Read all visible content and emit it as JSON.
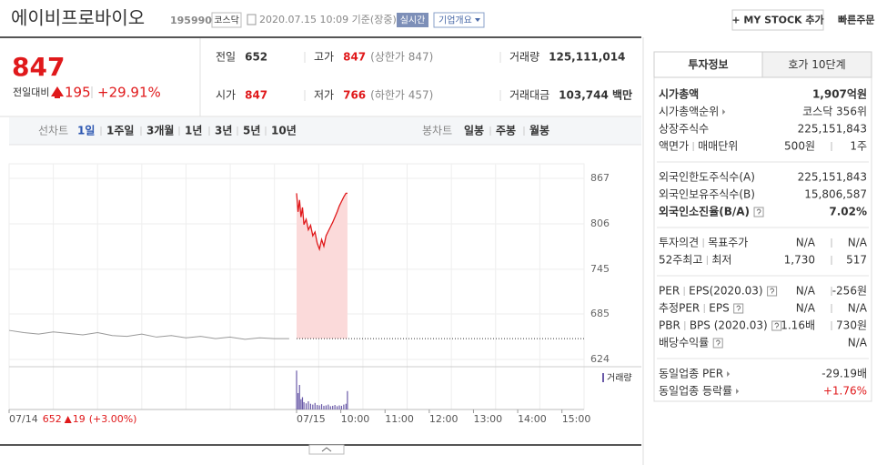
{
  "header": {
    "name": "에이비프로바이오",
    "code": "195990",
    "market": "코스닥",
    "timestamp": "2020.07.15 10:09 기준(장중)",
    "realtime": "실시간",
    "company_info": "기업개요",
    "mystock": "+ MY STOCK 추가",
    "quick_order": "빠른주문"
  },
  "summary": {
    "price": "847",
    "change_label": "전일대비",
    "change": "195",
    "rate": "+29.91%",
    "cells": [
      {
        "label": "전일",
        "value": "652"
      },
      {
        "label": "고가",
        "value": "847",
        "note": "(상한가 847)",
        "color": "#e0191b"
      },
      {
        "label": "거래량",
        "value": "125,111,014"
      },
      {
        "label": "시가",
        "value": "847",
        "color": "#e0191b"
      },
      {
        "label": "저가",
        "value": "766",
        "note": "(하한가 457)",
        "color": "#e0191b"
      },
      {
        "label": "거래대금",
        "value": "103,744 백만"
      }
    ]
  },
  "chart_tabs": {
    "line_label": "선차트",
    "periods": [
      "1일",
      "1주일",
      "3개월",
      "1년",
      "3년",
      "5년",
      "10년"
    ],
    "active": 0,
    "candle_label": "봉차트",
    "candle_periods": [
      "일봉",
      "주봉",
      "월봉"
    ]
  },
  "chart_data": {
    "type": "line",
    "xlim": [
      0,
      780
    ],
    "xticks": [
      {
        "value": 0,
        "label": "07/14"
      },
      {
        "value": 390,
        "label": "07/15"
      },
      {
        "value": 450,
        "label": "10:00"
      },
      {
        "value": 510,
        "label": "11:00"
      },
      {
        "value": 570,
        "label": "12:00"
      },
      {
        "value": 630,
        "label": "13:00"
      },
      {
        "value": 690,
        "label": "14:00"
      },
      {
        "value": 750,
        "label": "15:00"
      }
    ],
    "ylim": [
      624,
      867
    ],
    "yticks": [
      624,
      685,
      745,
      806,
      867
    ],
    "grid": true,
    "prev_close": 652,
    "series": [
      {
        "color": "#999999",
        "x": [
          0,
          20,
          40,
          60,
          80,
          100,
          120,
          140,
          160,
          180,
          200,
          220,
          240,
          260,
          280,
          300,
          320,
          340,
          360,
          380
        ],
        "values": [
          663,
          660,
          658,
          661,
          659,
          657,
          660,
          656,
          655,
          658,
          654,
          656,
          653,
          655,
          652,
          654,
          651,
          653,
          652,
          652
        ]
      },
      {
        "color": "#e0191b",
        "fill": "#fbdada",
        "x": [
          390,
          392,
          394,
          396,
          398,
          400,
          403,
          406,
          409,
          412,
          415,
          418,
          421,
          424,
          427,
          430,
          433,
          436,
          439,
          442,
          445,
          448,
          451,
          454,
          457,
          459
        ],
        "values": [
          847,
          822,
          838,
          815,
          828,
          805,
          812,
          798,
          804,
          790,
          795,
          780,
          772,
          785,
          776,
          790,
          796,
          802,
          808,
          815,
          822,
          830,
          836,
          842,
          847,
          847
        ]
      }
    ],
    "volume_label": "거래량",
    "volume_color": "#6a5aa8",
    "volume_ylim": [
      0,
      100
    ],
    "volume_x": [
      390,
      392,
      394,
      396,
      398,
      400,
      403,
      406,
      409,
      412,
      415,
      418,
      421,
      424,
      427,
      430,
      433,
      436,
      439,
      442,
      445,
      448,
      451,
      454,
      457,
      459
    ],
    "volume": [
      95,
      40,
      60,
      25,
      30,
      18,
      15,
      20,
      14,
      12,
      16,
      11,
      10,
      13,
      9,
      10,
      12,
      8,
      9,
      11,
      8,
      10,
      9,
      12,
      14,
      45
    ],
    "prev_day": {
      "price": "652",
      "change": "19",
      "rate": "(+3.00%)"
    }
  },
  "right_panel": {
    "tabs": [
      "투자정보",
      "호가 10단계"
    ],
    "sections": [
      {
        "rows": [
          {
            "labels": [
              "시가총액"
            ],
            "values": [
              "1,907억원"
            ],
            "bold": true
          },
          {
            "labels": [
              "시가총액순위"
            ],
            "values": [
              "코스닥 356위"
            ],
            "arrow": true
          },
          {
            "labels": [
              "상장주식수"
            ],
            "values": [
              "225,151,843"
            ]
          },
          {
            "labels": [
              "액면가",
              "매매단위"
            ],
            "values": [
              "500원",
              "1주"
            ]
          }
        ]
      },
      {
        "rows": [
          {
            "labels": [
              "외국인한도주식수(A)"
            ],
            "values": [
              "225,151,843"
            ]
          },
          {
            "labels": [
              "외국인보유주식수(B)"
            ],
            "values": [
              "15,806,587"
            ]
          },
          {
            "labels": [
              "외국인소진율(B/A)"
            ],
            "values": [
              "7.02%"
            ],
            "bold": true,
            "help": true
          }
        ]
      },
      {
        "rows": [
          {
            "labels": [
              "투자의견",
              "목표주가"
            ],
            "values": [
              "N/A",
              "N/A"
            ]
          },
          {
            "labels": [
              "52주최고",
              "최저"
            ],
            "values": [
              "1,730",
              "517"
            ]
          }
        ]
      },
      {
        "rows": [
          {
            "labels": [
              "PER",
              "EPS(2020.03)"
            ],
            "values": [
              "N/A",
              "-256원"
            ],
            "help": true
          },
          {
            "labels": [
              "추정PER",
              "EPS"
            ],
            "values": [
              "N/A",
              "N/A"
            ],
            "help": true
          },
          {
            "labels": [
              "PBR",
              "BPS (2020.03)"
            ],
            "values": [
              "1.16배",
              "730원"
            ],
            "help": true
          },
          {
            "labels": [
              "배당수익률"
            ],
            "values": [
              "N/A"
            ],
            "help": true
          }
        ]
      },
      {
        "rows": [
          {
            "labels": [
              "동일업종 PER"
            ],
            "values": [
              "-29.19배"
            ],
            "arrow": true
          },
          {
            "labels": [
              "동일업종 등락률"
            ],
            "values": [
              "+1.76%"
            ],
            "arrow": true,
            "color": "#e0191b"
          }
        ]
      }
    ]
  }
}
